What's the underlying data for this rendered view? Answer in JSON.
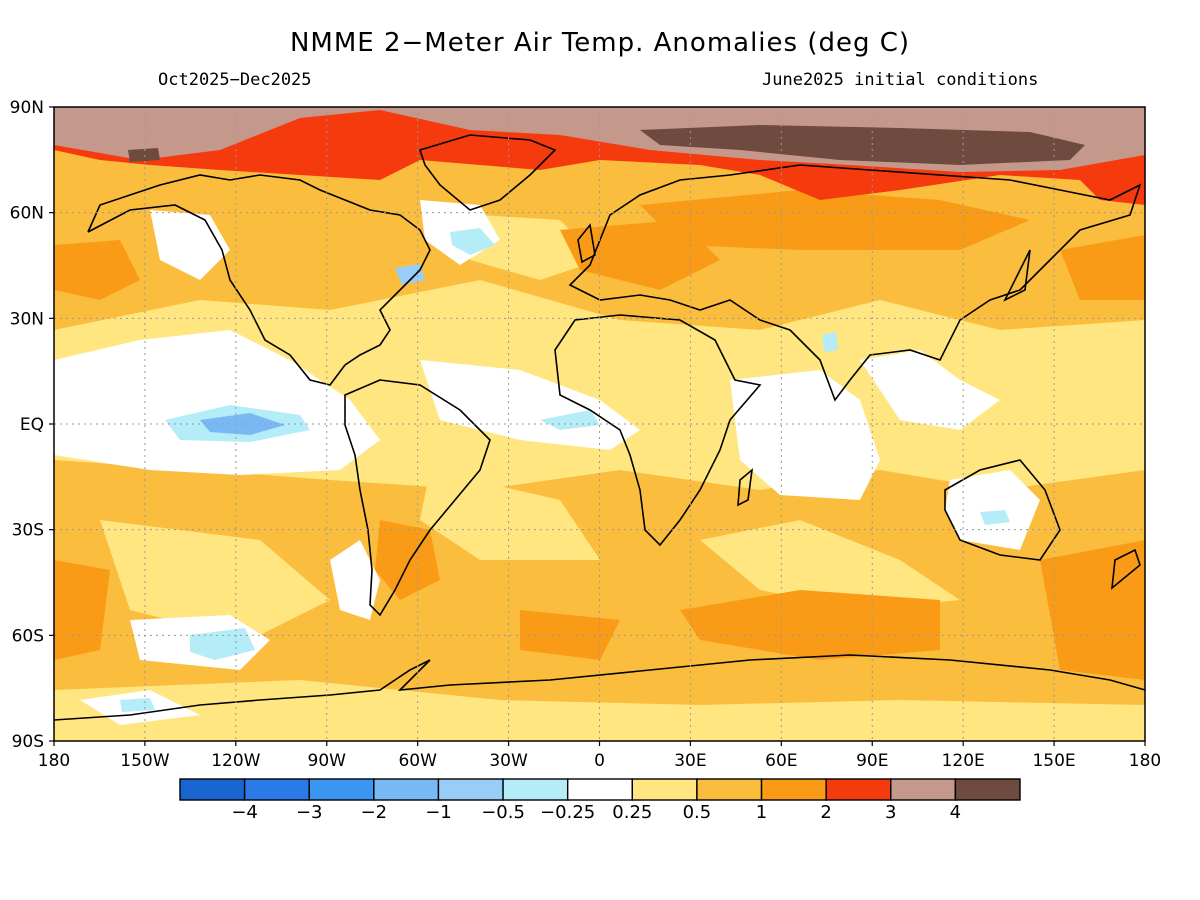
{
  "title": "NMME 2−Meter Air Temp. Anomalies (deg C)",
  "subtitle_left": "Oct2025−Dec2025",
  "subtitle_right": "June2025 initial conditions",
  "lat_ticks": [
    {
      "value": 90,
      "label": "90N"
    },
    {
      "value": 60,
      "label": "60N"
    },
    {
      "value": 30,
      "label": "30N"
    },
    {
      "value": 0,
      "label": "EQ"
    },
    {
      "value": -30,
      "label": "30S"
    },
    {
      "value": -60,
      "label": "60S"
    },
    {
      "value": -90,
      "label": "90S"
    }
  ],
  "lon_ticks": [
    {
      "value": -180,
      "label": "180"
    },
    {
      "value": -150,
      "label": "150W"
    },
    {
      "value": -120,
      "label": "120W"
    },
    {
      "value": -90,
      "label": "90W"
    },
    {
      "value": -60,
      "label": "60W"
    },
    {
      "value": -30,
      "label": "30W"
    },
    {
      "value": 0,
      "label": "0"
    },
    {
      "value": 30,
      "label": "30E"
    },
    {
      "value": 60,
      "label": "60E"
    },
    {
      "value": 90,
      "label": "90E"
    },
    {
      "value": 120,
      "label": "120E"
    },
    {
      "value": 150,
      "label": "150E"
    },
    {
      "value": 180,
      "label": "180"
    }
  ],
  "colorbar": {
    "bins": [
      {
        "color": "#1a66d0"
      },
      {
        "color": "#2a7ae8"
      },
      {
        "color": "#3a96f0"
      },
      {
        "color": "#78b9f5"
      },
      {
        "color": "#98cdf7"
      },
      {
        "color": "#b4ecf8"
      },
      {
        "color": "#ffffff"
      },
      {
        "color": "#ffe680"
      },
      {
        "color": "#fbbd3e"
      },
      {
        "color": "#f99b16"
      },
      {
        "color": "#f53a0e"
      },
      {
        "color": "#c4998c"
      },
      {
        "color": "#6f4a3f"
      }
    ],
    "labels": [
      "−4",
      "−3",
      "−2",
      "−1",
      "−0.5",
      "−0.25",
      "0.25",
      "0.5",
      "1",
      "2",
      "3",
      "4"
    ]
  },
  "colors": {
    "white": "#ffffff",
    "light_yellow": "#ffe680",
    "yellow_orange": "#fbbd3e",
    "orange": "#f99b16",
    "red": "#f53a0e",
    "tan": "#c4998c",
    "brown": "#6f4a3f",
    "lightest_blue": "#b4ecf8",
    "light_blue": "#98cdf7",
    "mid_blue": "#78b9f5"
  }
}
